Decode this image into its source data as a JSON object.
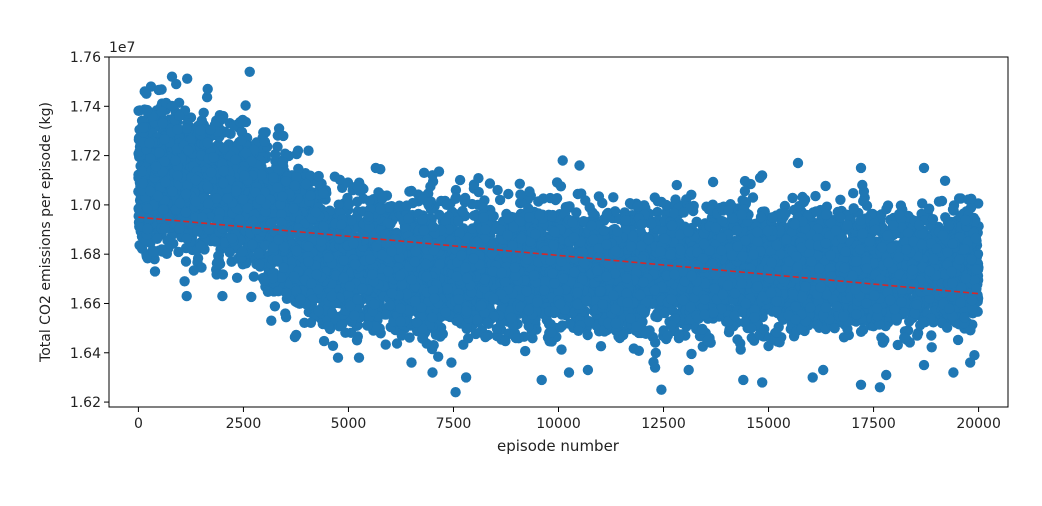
{
  "chart_data": {
    "type": "scatter",
    "title": "",
    "xlabel": "episode number",
    "ylabel": "Total CO2 emissions per episode (kg)",
    "offset_label": "1e7",
    "xlim": [
      -700,
      20700
    ],
    "ylim": [
      16180000,
      17600000
    ],
    "x_ticks": [
      0,
      2500,
      5000,
      7500,
      10000,
      12500,
      15000,
      17500,
      20000
    ],
    "x_tick_labels": [
      "0",
      "2500",
      "5000",
      "7500",
      "10000",
      "12500",
      "15000",
      "17500",
      "20000"
    ],
    "y_ticks": [
      16200000,
      16400000,
      16600000,
      16800000,
      17000000,
      17200000,
      17400000,
      17600000
    ],
    "y_tick_labels": [
      "1.62",
      "1.64",
      "1.66",
      "1.68",
      "1.70",
      "1.72",
      "1.74",
      "1.76"
    ],
    "grid": false,
    "series": [
      {
        "kind": "scatter",
        "color": "#1f77b4",
        "n_points": 20000,
        "density_envelope": {
          "x": [
            0,
            1000,
            2000,
            2500,
            3000,
            3500,
            4000,
            4500,
            5000,
            6000,
            7500,
            10000,
            12500,
            15000,
            17500,
            20000
          ],
          "center": [
            17130000,
            17100000,
            17060000,
            17030000,
            16960000,
            16880000,
            16820000,
            16790000,
            16770000,
            16760000,
            16750000,
            16740000,
            16740000,
            16740000,
            16740000,
            16740000
          ],
          "spread": [
            230000,
            230000,
            230000,
            230000,
            235000,
            235000,
            230000,
            220000,
            210000,
            210000,
            205000,
            200000,
            200000,
            200000,
            200000,
            200000
          ]
        },
        "extreme_points": [
          {
            "x": 2650,
            "y": 17540000
          },
          {
            "x": 800,
            "y": 17520000
          },
          {
            "x": 900,
            "y": 17490000
          },
          {
            "x": 1650,
            "y": 17470000
          },
          {
            "x": 300,
            "y": 17480000
          },
          {
            "x": 150,
            "y": 17460000
          },
          {
            "x": 3350,
            "y": 17310000
          },
          {
            "x": 3450,
            "y": 17280000
          },
          {
            "x": 3800,
            "y": 17220000
          },
          {
            "x": 4050,
            "y": 17220000
          },
          {
            "x": 10100,
            "y": 17180000
          },
          {
            "x": 10500,
            "y": 17160000
          },
          {
            "x": 15700,
            "y": 17170000
          },
          {
            "x": 18700,
            "y": 17150000
          },
          {
            "x": 17200,
            "y": 17150000
          },
          {
            "x": 5650,
            "y": 17150000
          },
          {
            "x": 6800,
            "y": 17130000
          },
          {
            "x": 7000,
            "y": 17120000
          },
          {
            "x": 14800,
            "y": 17110000
          },
          {
            "x": 1100,
            "y": 16690000
          },
          {
            "x": 1150,
            "y": 16630000
          },
          {
            "x": 2000,
            "y": 16630000
          },
          {
            "x": 4750,
            "y": 16380000
          },
          {
            "x": 5250,
            "y": 16380000
          },
          {
            "x": 6500,
            "y": 16360000
          },
          {
            "x": 7000,
            "y": 16320000
          },
          {
            "x": 7450,
            "y": 16360000
          },
          {
            "x": 7550,
            "y": 16240000
          },
          {
            "x": 7800,
            "y": 16300000
          },
          {
            "x": 9600,
            "y": 16290000
          },
          {
            "x": 10250,
            "y": 16320000
          },
          {
            "x": 10700,
            "y": 16330000
          },
          {
            "x": 12300,
            "y": 16340000
          },
          {
            "x": 12450,
            "y": 16250000
          },
          {
            "x": 13100,
            "y": 16330000
          },
          {
            "x": 14400,
            "y": 16290000
          },
          {
            "x": 14850,
            "y": 16280000
          },
          {
            "x": 16050,
            "y": 16300000
          },
          {
            "x": 16300,
            "y": 16330000
          },
          {
            "x": 17200,
            "y": 16270000
          },
          {
            "x": 17650,
            "y": 16260000
          },
          {
            "x": 17800,
            "y": 16310000
          },
          {
            "x": 18700,
            "y": 16350000
          },
          {
            "x": 19400,
            "y": 16320000
          },
          {
            "x": 19800,
            "y": 16360000
          },
          {
            "x": 19900,
            "y": 16390000
          },
          {
            "x": 200,
            "y": 16790000
          },
          {
            "x": 350,
            "y": 16810000
          }
        ]
      },
      {
        "kind": "trend",
        "color": "#d62728",
        "style": "dashed",
        "x": [
          0,
          20000
        ],
        "y": [
          16950000,
          16640000
        ]
      }
    ]
  }
}
